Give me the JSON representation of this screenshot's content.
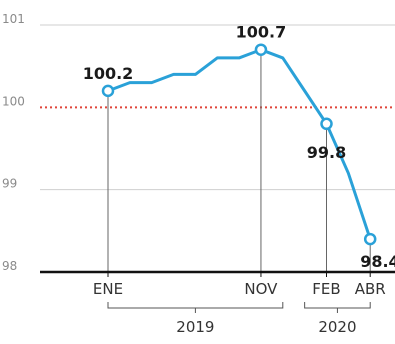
{
  "chart_data": {
    "type": "line",
    "title": "",
    "xlabel": "",
    "ylabel": "",
    "ylim": [
      98,
      101
    ],
    "y_ticks": [
      "101",
      "100",
      "99",
      "98"
    ],
    "reference_line": {
      "value": 100,
      "color": "#e0453a",
      "style": "dotted"
    },
    "series": [
      {
        "color": "#2aa1d8",
        "values": [
          {
            "x": 0,
            "y": 100.2
          },
          {
            "x": 1,
            "y": 100.3
          },
          {
            "x": 2,
            "y": 100.3
          },
          {
            "x": 3,
            "y": 100.4
          },
          {
            "x": 4,
            "y": 100.4
          },
          {
            "x": 5,
            "y": 100.6
          },
          {
            "x": 6,
            "y": 100.6
          },
          {
            "x": 7,
            "y": 100.7
          },
          {
            "x": 8,
            "y": 100.6
          },
          {
            "x": 9,
            "y": 100.2
          },
          {
            "x": 10,
            "y": 99.8
          },
          {
            "x": 11,
            "y": 99.2
          },
          {
            "x": 12,
            "y": 98.4
          }
        ]
      }
    ],
    "highlights": [
      {
        "x": 0,
        "month": "ENE",
        "label": "100.2",
        "label_pos": "above"
      },
      {
        "x": 7,
        "month": "NOV",
        "label": "100.7",
        "label_pos": "above"
      },
      {
        "x": 10,
        "month": "FEB",
        "label": "99.8",
        "label_pos": "below"
      },
      {
        "x": 12,
        "month": "ABR",
        "label": "98.4",
        "label_pos": "below"
      }
    ],
    "years": [
      {
        "label": "2019",
        "from_x": 0,
        "to_x": 8
      },
      {
        "label": "2020",
        "from_x": 9,
        "to_x": 12
      }
    ],
    "colors": {
      "line": "#2aa1d8",
      "reference": "#e0453a",
      "baseline": "#111111",
      "drop": "#666666",
      "grid": "#cfcfcf"
    }
  }
}
